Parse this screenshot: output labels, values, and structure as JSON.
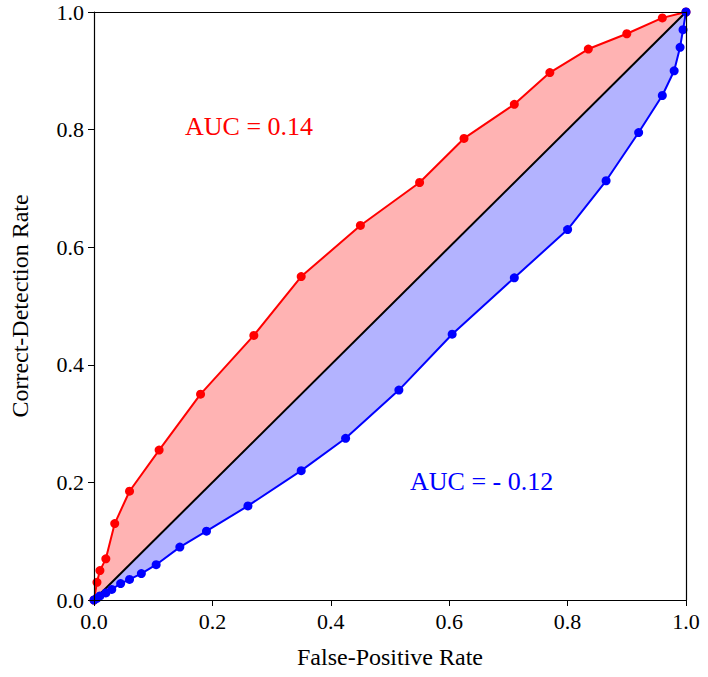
{
  "chart_data": {
    "type": "line",
    "x_label": "False-Positive Rate",
    "y_label": "Correct-Detection Rate",
    "xlim": [
      0,
      1
    ],
    "ylim": [
      0,
      1
    ],
    "xticks": [
      {
        "value": 0,
        "label": "0.0"
      },
      {
        "value": 0.2,
        "label": "0.2"
      },
      {
        "value": 0.4,
        "label": "0.4"
      },
      {
        "value": 0.6,
        "label": "0.6"
      },
      {
        "value": 0.8,
        "label": "0.8"
      },
      {
        "value": 1,
        "label": "1.0"
      }
    ],
    "yticks": [
      {
        "value": 0,
        "label": "0.0"
      },
      {
        "value": 0.2,
        "label": "0.2"
      },
      {
        "value": 0.4,
        "label": "0.4"
      },
      {
        "value": 0.6,
        "label": "0.6"
      },
      {
        "value": 0.8,
        "label": "0.8"
      },
      {
        "value": 1,
        "label": "1.0"
      }
    ],
    "grid": false,
    "series": [
      {
        "color": "#ff0000",
        "marker": "circle",
        "x": [
          0,
          0.005,
          0.01,
          0.02,
          0.035,
          0.06,
          0.11,
          0.18,
          0.27,
          0.35,
          0.45,
          0.55,
          0.625,
          0.71,
          0.77,
          0.835,
          0.9,
          0.96,
          1.0
        ],
        "values": [
          0,
          0.03,
          0.05,
          0.07,
          0.13,
          0.185,
          0.255,
          0.35,
          0.45,
          0.55,
          0.637,
          0.71,
          0.785,
          0.843,
          0.897,
          0.937,
          0.963,
          0.99,
          1.0
        ]
      },
      {
        "color": "#000000",
        "marker": "none",
        "x": [
          0,
          1
        ],
        "values": [
          0,
          1
        ]
      },
      {
        "color": "#0000ff",
        "marker": "circle",
        "x": [
          0,
          0.005,
          0.01,
          0.02,
          0.03,
          0.045,
          0.06,
          0.08,
          0.105,
          0.145,
          0.19,
          0.26,
          0.35,
          0.425,
          0.515,
          0.605,
          0.71,
          0.8,
          0.865,
          0.92,
          0.96,
          0.98,
          0.99,
          0.995,
          1.0
        ],
        "values": [
          0,
          0.003,
          0.007,
          0.012,
          0.018,
          0.028,
          0.035,
          0.045,
          0.06,
          0.09,
          0.117,
          0.16,
          0.22,
          0.275,
          0.357,
          0.452,
          0.548,
          0.63,
          0.713,
          0.795,
          0.858,
          0.9,
          0.94,
          0.97,
          1.0
        ]
      }
    ],
    "annotations": [
      {
        "text": "AUC = 0.14",
        "color": "#ff0000"
      },
      {
        "text": "AUC = - 0.12",
        "color": "#0000ff"
      }
    ]
  }
}
